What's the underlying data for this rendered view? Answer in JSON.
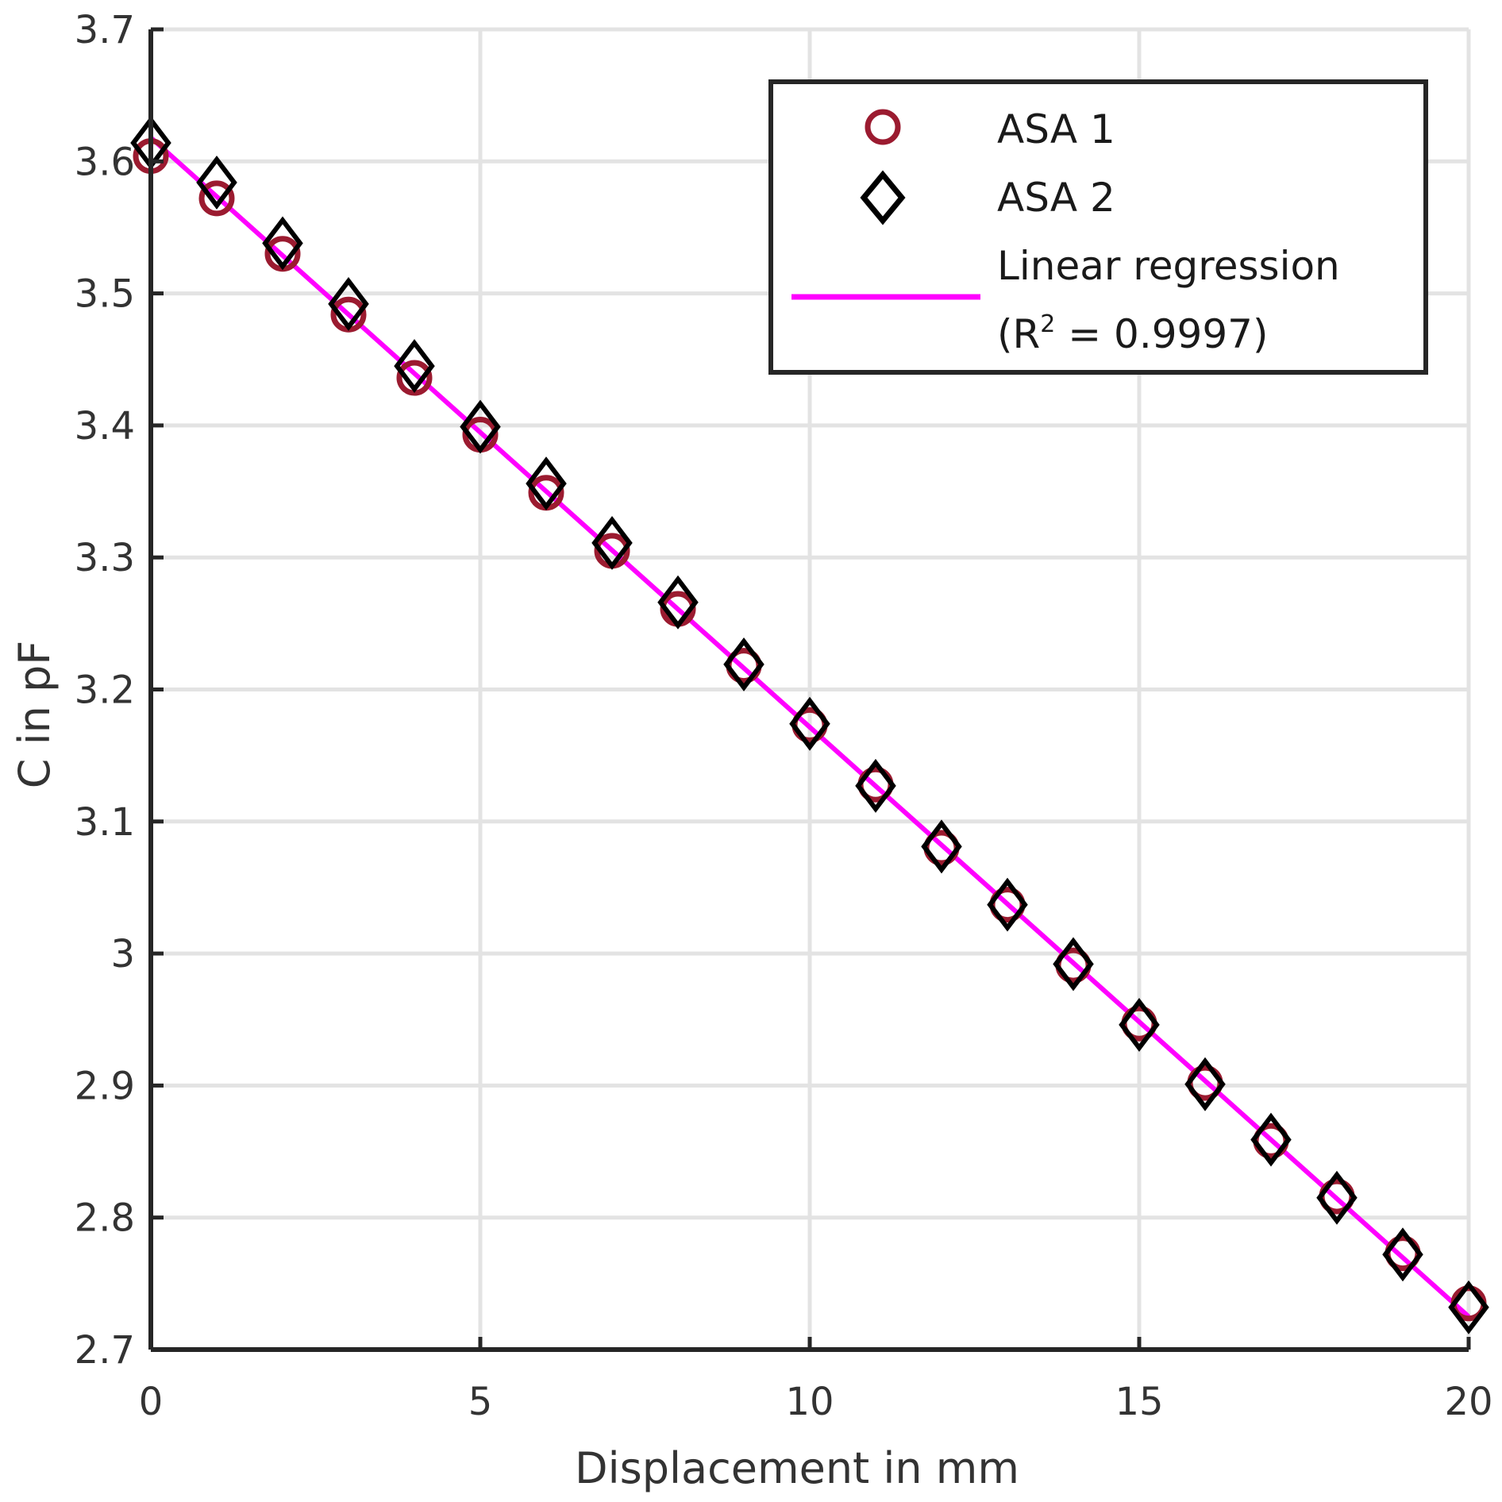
{
  "chart_data": {
    "type": "scatter",
    "xlabel": "Displacement in mm",
    "ylabel": "C in pF",
    "xlim": [
      0,
      20
    ],
    "ylim": [
      2.7,
      3.7
    ],
    "xticks": [
      "0",
      "5",
      "10",
      "15",
      "20"
    ],
    "yticks": [
      "2.7",
      "2.8",
      "2.9",
      "3",
      "3.1",
      "3.2",
      "3.3",
      "3.4",
      "3.5",
      "3.6",
      "3.7"
    ],
    "grid": true,
    "legend_position": "top-right",
    "x": [
      0,
      1,
      2,
      3,
      4,
      5,
      6,
      7,
      8,
      9,
      10,
      11,
      12,
      13,
      14,
      15,
      16,
      17,
      18,
      19,
      20
    ],
    "series": [
      {
        "name": "ASA 1",
        "marker": "circle",
        "color": "#9b1b30",
        "values": [
          3.604,
          3.572,
          3.53,
          3.484,
          3.436,
          3.393,
          3.349,
          3.305,
          3.261,
          3.218,
          3.173,
          3.128,
          3.08,
          3.037,
          2.991,
          2.947,
          2.902,
          2.858,
          2.816,
          2.773,
          2.735
        ]
      },
      {
        "name": "ASA 2",
        "marker": "diamond",
        "color": "#000000",
        "values": [
          3.614,
          3.584,
          3.538,
          3.492,
          3.445,
          3.399,
          3.356,
          3.311,
          3.266,
          3.219,
          3.174,
          3.127,
          3.081,
          3.037,
          2.992,
          2.946,
          2.901,
          2.859,
          2.815,
          2.772,
          2.732
        ]
      },
      {
        "name_lines": [
          "Linear regression",
          "(R",
          "2",
          " = 0.9997)"
        ],
        "type": "line",
        "color": "#ff00ff",
        "x": [
          0,
          20
        ],
        "values": [
          3.618,
          2.725
        ]
      }
    ]
  }
}
